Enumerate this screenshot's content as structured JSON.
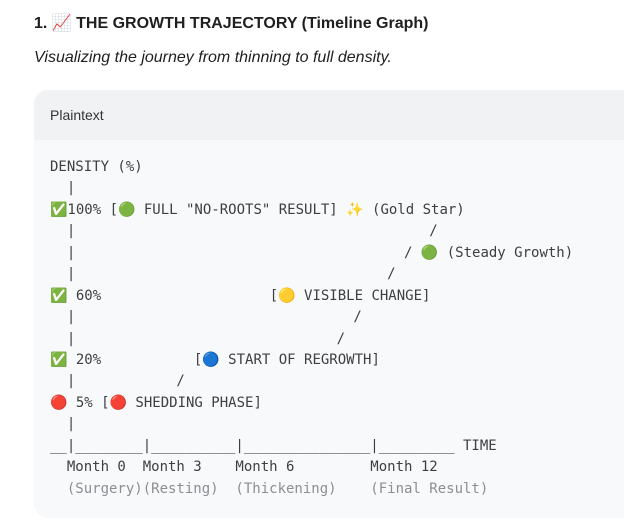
{
  "header": {
    "title": "1. 📈 THE GROWTH TRAJECTORY (Timeline Graph)",
    "subtitle": "Visualizing the journey from thinning to full density."
  },
  "code_block": {
    "language": "Plaintext",
    "lines": [
      "DENSITY (%)",
      "  |",
      "✅100% [🟢 FULL \"NO-ROOTS\" RESULT] ✨ (Gold Star)",
      "  |                                          /",
      "  |                                       / 🟢 (Steady Growth)",
      "  |                                     /",
      "✅ 60%                    [🟡 VISIBLE CHANGE]",
      "  |                                 /",
      "  |                               /",
      "✅ 20%           [🔵 START OF REGROWTH]",
      "  |            /",
      "🔴 5% [🔴 SHEDDING PHASE]",
      "  |",
      "__|________|__________|_______________|_________ TIME",
      "  Month 0  Month 3    Month 6         Month 12",
      "  (Surgery)(Resting)  (Thickening)    (Final Result)"
    ]
  }
}
